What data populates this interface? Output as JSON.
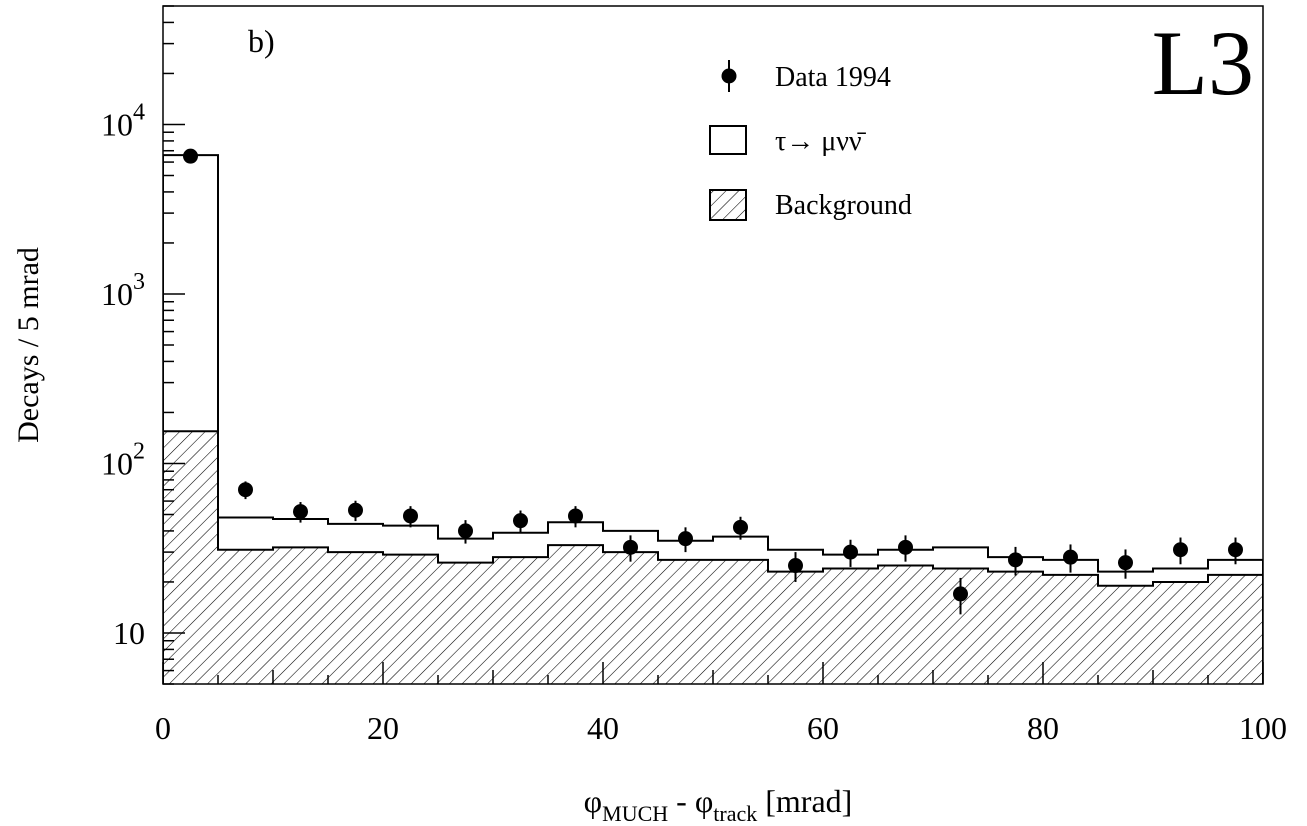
{
  "chart_data": {
    "type": "bar",
    "panel_label": "b)",
    "experiment_logo": "L3",
    "xlabel": {
      "phi1": "φ",
      "sub1": "MUCH",
      "dash": "-",
      "phi2": "φ",
      "sub2": "track",
      "unit": "[mrad]"
    },
    "ylabel": "Decays / 5 mrad",
    "xlim": [
      0,
      100
    ],
    "ylim": [
      5,
      50000
    ],
    "log_y": true,
    "grid": false,
    "legend_position": "top-right",
    "x_ticks": [
      {
        "value": 0,
        "label": "0"
      },
      {
        "value": 20,
        "label": "20"
      },
      {
        "value": 40,
        "label": "40"
      },
      {
        "value": 60,
        "label": "60"
      },
      {
        "value": 80,
        "label": "80"
      },
      {
        "value": 100,
        "label": "100"
      }
    ],
    "y_ticks": [
      {
        "value": 10,
        "base": "10",
        "exp": ""
      },
      {
        "value": 100,
        "base": "10",
        "exp": "2"
      },
      {
        "value": 1000,
        "base": "10",
        "exp": "3"
      },
      {
        "value": 10000,
        "base": "10",
        "exp": "4"
      }
    ],
    "bin_edges": [
      0,
      5,
      10,
      15,
      20,
      25,
      30,
      35,
      40,
      45,
      50,
      55,
      60,
      65,
      70,
      75,
      80,
      85,
      90,
      95,
      100
    ],
    "series": [
      {
        "name": "Data 1994",
        "style": "points-with-errors",
        "x": [
          2.5,
          7.5,
          12.5,
          17.5,
          22.5,
          27.5,
          32.5,
          37.5,
          42.5,
          47.5,
          52.5,
          57.5,
          62.5,
          67.5,
          72.5,
          77.5,
          82.5,
          87.5,
          92.5,
          97.5
        ],
        "values": [
          6500,
          70,
          52,
          53,
          49,
          40,
          46,
          49,
          32,
          36,
          42,
          25,
          30,
          32,
          17,
          27,
          28,
          26,
          31,
          31
        ]
      },
      {
        "name": "τ→ μνν̄",
        "style": "open-histogram",
        "values": [
          6600,
          48,
          47,
          44,
          43,
          36,
          39,
          45,
          40,
          35,
          37,
          31,
          29,
          31,
          32,
          28,
          27,
          23,
          24,
          27
        ]
      },
      {
        "name": "Background",
        "style": "hatched-histogram",
        "values": [
          155,
          31,
          32,
          30,
          29,
          26,
          28,
          33,
          30,
          27,
          27,
          23,
          24,
          25,
          24,
          23,
          22,
          19,
          20,
          22
        ]
      }
    ],
    "colors": {
      "ink": "#000000",
      "background": "#ffffff"
    }
  }
}
